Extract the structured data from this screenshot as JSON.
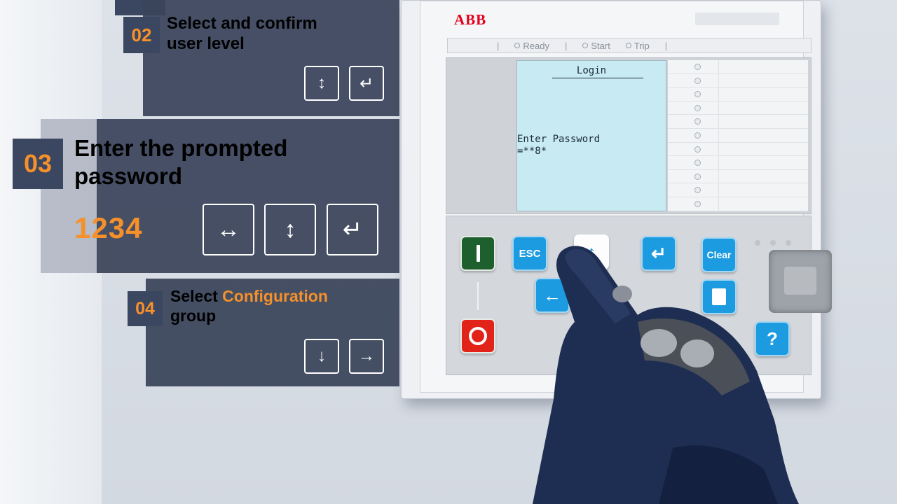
{
  "device": {
    "brand": "ABB",
    "status": {
      "ready": "Ready",
      "start": "Start",
      "trip": "Trip"
    },
    "lcd": {
      "title": "Login",
      "prompt": "Enter Password",
      "value": "=**8*"
    },
    "keys": {
      "esc": "ESC",
      "clear": "Clear",
      "help": "?"
    }
  },
  "steps": {
    "step02": {
      "number": "02",
      "title_line1": "Select and confirm",
      "title_line2": "user level"
    },
    "step03": {
      "number": "03",
      "title_line1": "Enter the prompted",
      "title_line2": "password",
      "code": "1234"
    },
    "step04": {
      "number": "04",
      "title_prefix": "Select",
      "title_highlight": "Configuration",
      "title_line2": "group"
    }
  },
  "icons": {
    "up_down": "up-down-arrow-icon",
    "enter": "enter-icon",
    "left_right": "left-right-arrow-icon",
    "down": "down-arrow-icon",
    "right": "right-arrow-icon"
  },
  "colors": {
    "accent": "#f5902a",
    "panel": "#3a445a",
    "key_blue": "#1d9be0",
    "key_green": "#1e5f2e",
    "key_red": "#e2231a",
    "abb_red": "#e2001a"
  }
}
